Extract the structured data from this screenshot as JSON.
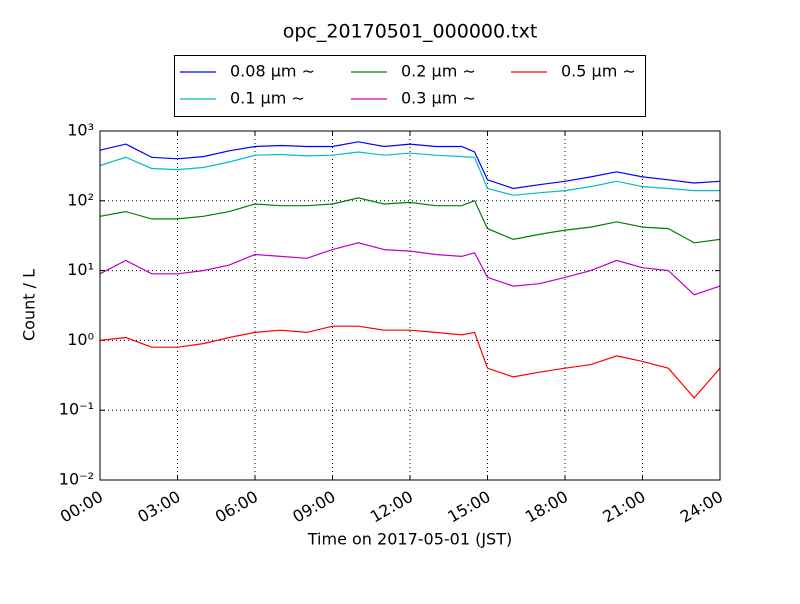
{
  "chart_data": {
    "type": "line",
    "title": "opc_20170501_000000.txt",
    "xlabel": "Time on 2017-05-01 (JST)",
    "ylabel": "Count / L",
    "x": [
      "00:00",
      "01:00",
      "02:00",
      "03:00",
      "04:00",
      "05:00",
      "06:00",
      "07:00",
      "08:00",
      "09:00",
      "10:00",
      "11:00",
      "12:00",
      "13:00",
      "14:00",
      "14:30",
      "15:00",
      "16:00",
      "17:00",
      "18:00",
      "19:00",
      "20:00",
      "21:00",
      "22:00",
      "23:00",
      "24:00"
    ],
    "series": [
      {
        "name": "0.08 μm ∼",
        "color": "#0000ff",
        "values": [
          530,
          650,
          420,
          400,
          430,
          520,
          600,
          620,
          600,
          600,
          700,
          600,
          650,
          600,
          600,
          500,
          200,
          150,
          170,
          190,
          220,
          260,
          220,
          200,
          180,
          190
        ]
      },
      {
        "name": "0.1 μm ∼",
        "color": "#00bfbf",
        "values": [
          320,
          420,
          290,
          280,
          300,
          360,
          450,
          460,
          440,
          450,
          500,
          450,
          480,
          450,
          430,
          420,
          150,
          120,
          130,
          140,
          160,
          190,
          160,
          150,
          140,
          140
        ]
      },
      {
        "name": "0.2 μm ∼",
        "color": "#008000",
        "values": [
          60,
          70,
          55,
          55,
          60,
          70,
          90,
          85,
          85,
          90,
          110,
          90,
          95,
          85,
          85,
          100,
          40,
          28,
          33,
          38,
          42,
          50,
          42,
          40,
          25,
          28
        ]
      },
      {
        "name": "0.3 μm ∼",
        "color": "#bf00bf",
        "values": [
          9,
          14,
          9,
          9,
          10,
          12,
          17,
          16,
          15,
          20,
          25,
          20,
          19,
          17,
          16,
          18,
          8,
          6,
          6.5,
          8,
          10,
          14,
          11,
          10,
          4.5,
          6
        ]
      },
      {
        "name": "0.5 μm ∼",
        "color": "#ff0000",
        "values": [
          1.0,
          1.1,
          0.8,
          0.8,
          0.9,
          1.1,
          1.3,
          1.4,
          1.3,
          1.6,
          1.6,
          1.4,
          1.4,
          1.3,
          1.2,
          1.3,
          0.4,
          0.3,
          0.35,
          0.4,
          0.45,
          0.6,
          0.5,
          0.4,
          0.15,
          0.4
        ]
      }
    ],
    "xlim": [
      "00:00",
      "24:00"
    ],
    "xticks": [
      "00:00",
      "03:00",
      "06:00",
      "09:00",
      "12:00",
      "15:00",
      "18:00",
      "21:00",
      "24:00"
    ],
    "ylim": [
      0.01,
      1000
    ],
    "yticks": [
      {
        "value": 0.01,
        "label": "10⁻²"
      },
      {
        "value": 0.1,
        "label": "10⁻¹"
      },
      {
        "value": 1,
        "label": "10⁰"
      },
      {
        "value": 10,
        "label": "10¹"
      },
      {
        "value": 100,
        "label": "10²"
      },
      {
        "value": 1000,
        "label": "10³"
      }
    ],
    "log_y": true,
    "grid": true,
    "legend": "top"
  }
}
